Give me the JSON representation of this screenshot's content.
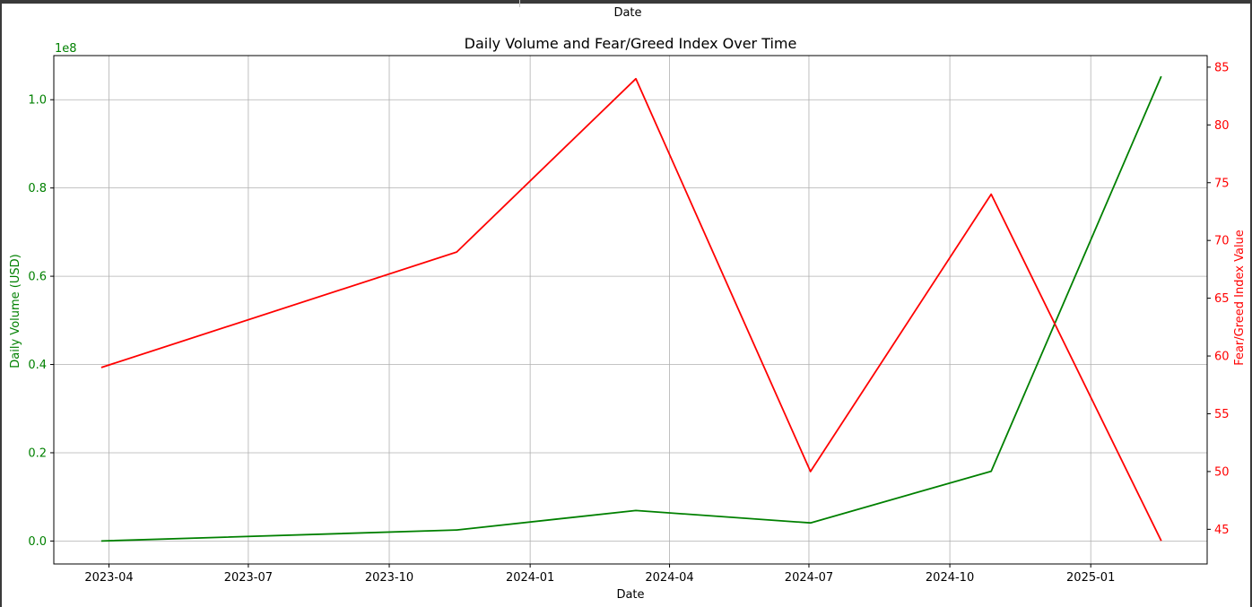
{
  "window": {
    "top_label": "Date"
  },
  "chart_data": {
    "type": "line",
    "title": "Daily Volume and Fear/Greed Index Over Time",
    "xlabel": "Date",
    "x": [
      "2023-03-27",
      "2023-11-14",
      "2024-03-10",
      "2024-07-02",
      "2024-10-28",
      "2025-02-16"
    ],
    "x_ticks": [
      "2023-04",
      "2023-07",
      "2023-10",
      "2024-01",
      "2024-04",
      "2024-07",
      "2024-10",
      "2025-01"
    ],
    "x_tick_dates": [
      "2023-04-01",
      "2023-07-01",
      "2023-10-01",
      "2024-01-01",
      "2024-04-01",
      "2024-07-01",
      "2024-10-01",
      "2025-01-01"
    ],
    "xlim": [
      "2023-02-24",
      "2025-03-18"
    ],
    "grid": true,
    "axes": {
      "left": {
        "label": "Daily Volume (USD)",
        "color": "#008000",
        "offset_text": "1e8",
        "ylim": [
          -0.052,
          1.1
        ],
        "ticks": [
          0.0,
          0.2,
          0.4,
          0.6,
          0.8,
          1.0
        ],
        "tick_labels": [
          "0.0",
          "0.2",
          "0.4",
          "0.6",
          "0.8",
          "1.0"
        ]
      },
      "right": {
        "label": "Fear/Greed Index Value",
        "color": "#ff0000",
        "ylim": [
          42,
          86
        ],
        "ticks": [
          45,
          50,
          55,
          60,
          65,
          70,
          75,
          80,
          85
        ],
        "tick_labels": [
          "45",
          "50",
          "55",
          "60",
          "65",
          "70",
          "75",
          "80",
          "85"
        ]
      }
    },
    "series": [
      {
        "axis": "left",
        "color": "#008000",
        "values": [
          0.0,
          0.025,
          0.069,
          0.041,
          0.158,
          1.053
        ]
      },
      {
        "axis": "right",
        "color": "#ff0000",
        "values": [
          59,
          69,
          84,
          50,
          74,
          44
        ]
      }
    ]
  }
}
